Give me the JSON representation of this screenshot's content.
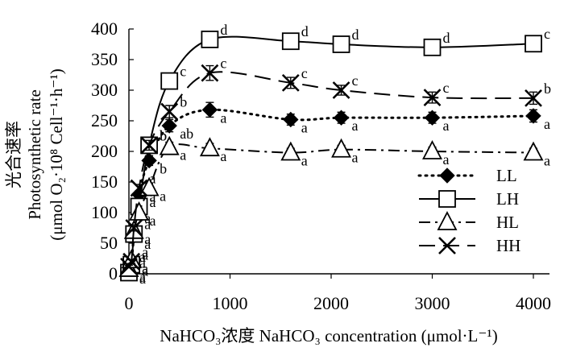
{
  "chart_data": {
    "type": "line",
    "title": "",
    "xlabel": "NaHCO₃浓度  NaHCO₃ concentration  (μmol·L⁻¹)",
    "ylabel_lines": [
      "光合速率",
      "Photosynthetic rate",
      "(μmol O₂·10⁸ Cell⁻¹·h⁻¹)"
    ],
    "xlim": [
      0,
      4000
    ],
    "ylim": [
      0,
      400
    ],
    "x_ticks": [
      0,
      1000,
      2000,
      3000,
      4000
    ],
    "y_ticks": [
      0,
      50,
      100,
      150,
      200,
      250,
      300,
      350,
      400
    ],
    "grid": false,
    "legend_position": "right",
    "series": [
      {
        "name": "LL",
        "marker": "diamond",
        "line_style": "dotted",
        "x": [
          0,
          25,
          50,
          100,
          200,
          400,
          800,
          1600,
          2100,
          3000,
          4000
        ],
        "y": [
          5,
          18,
          62,
          130,
          185,
          242,
          268,
          252,
          255,
          255,
          258
        ],
        "errors": [
          2,
          3,
          5,
          6,
          8,
          10,
          12,
          9,
          9,
          9,
          10
        ],
        "labels": [
          "a",
          "a",
          "a",
          "a",
          "b",
          "ab",
          "a",
          "a",
          "a",
          "a",
          "a"
        ]
      },
      {
        "name": "LH",
        "marker": "square",
        "line_style": "solid",
        "x": [
          0,
          25,
          50,
          100,
          200,
          400,
          800,
          1600,
          2100,
          3000,
          4000
        ],
        "y": [
          2,
          15,
          65,
          110,
          210,
          315,
          383,
          380,
          375,
          370,
          376
        ],
        "errors": [
          2,
          3,
          5,
          6,
          8,
          8,
          6,
          5,
          5,
          5,
          6
        ],
        "labels": [
          "a",
          "a",
          "a",
          "a",
          "b",
          "c",
          "d",
          "d",
          "d",
          "d",
          "c"
        ]
      },
      {
        "name": "HL",
        "marker": "triangle",
        "line_style": "dashdot",
        "x": [
          0,
          25,
          50,
          100,
          200,
          400,
          800,
          1600,
          2100,
          3000,
          4000
        ],
        "y": [
          8,
          22,
          70,
          100,
          140,
          207,
          205,
          198,
          203,
          200,
          198
        ],
        "errors": [
          2,
          3,
          5,
          6,
          8,
          8,
          8,
          7,
          7,
          7,
          7
        ],
        "labels": [
          "a",
          "a",
          "a",
          "a",
          "a",
          "a",
          "a",
          "a",
          "a",
          "a",
          "a"
        ]
      },
      {
        "name": "HH",
        "marker": "x",
        "line_style": "dashed",
        "x": [
          0,
          25,
          50,
          100,
          200,
          400,
          800,
          1600,
          2100,
          3000,
          4000
        ],
        "y": [
          12,
          20,
          75,
          140,
          210,
          265,
          328,
          312,
          300,
          288,
          287
        ],
        "errors": [
          2,
          3,
          5,
          6,
          8,
          10,
          12,
          9,
          8,
          9,
          10
        ],
        "labels": [
          "a",
          "a",
          "a",
          "a",
          "b",
          "b",
          "c",
          "c",
          "c",
          "c",
          "b"
        ]
      }
    ]
  }
}
